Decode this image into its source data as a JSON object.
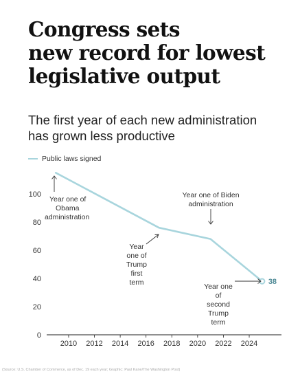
{
  "chart_data": {
    "type": "line",
    "title_lines": [
      "Congress sets",
      "new record for lowest",
      "legislative output"
    ],
    "subtitle_lines": [
      "The first year of each new administration",
      "has grown less productive"
    ],
    "series": [
      {
        "name": "Public laws signed",
        "x": [
          2009,
          2017,
          2021,
          2025
        ],
        "values": [
          115,
          76,
          68,
          38
        ]
      }
    ],
    "end_label": "38",
    "x_ticks": [
      "2010",
      "2012",
      "2014",
      "2016",
      "2018",
      "2020",
      "2022",
      "2024"
    ],
    "y_ticks": [
      "0",
      "20",
      "40",
      "60",
      "80",
      "100"
    ],
    "xlim": [
      2008.3,
      2026.5
    ],
    "ylim": [
      0,
      120
    ],
    "grid": false,
    "legend_position": "top-left",
    "annotations": [
      {
        "lines": [
          "Year one of",
          "Obama",
          "administration"
        ]
      },
      {
        "lines": [
          "Year",
          "one of",
          "Trump",
          "first",
          "term"
        ]
      },
      {
        "lines": [
          "Year one of Biden",
          "administration"
        ]
      },
      {
        "lines": [
          "Year one",
          "of",
          "second",
          "Trump",
          "term"
        ]
      }
    ],
    "source": "(Source: U.S. Chamber of Commerce, as of Dec. 19 each year; Graphic: Paul Kane/The Washington Post)"
  },
  "colors": {
    "line": "#a8d5dd",
    "end_label": "#4f8a96",
    "axis": "#222222",
    "text": "#333333"
  }
}
